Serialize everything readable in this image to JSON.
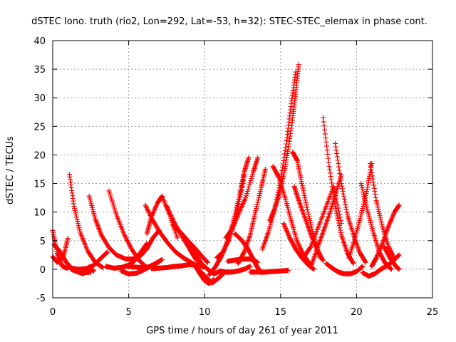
{
  "chart_data": {
    "type": "scatter",
    "title": "dSTEC Iono. truth (rio2, Lon=292, Lat=-53, h=32): STEC-STEC_elemax in phase cont.",
    "xlabel": "GPS time / hours of day 261 of year 2011",
    "ylabel": "dSTEC  / TECUs",
    "xlim": [
      0,
      25
    ],
    "ylim": [
      -5,
      40
    ],
    "xticks": [
      0,
      5,
      10,
      15,
      20,
      25
    ],
    "yticks": [
      -5,
      0,
      5,
      10,
      15,
      20,
      25,
      30,
      35,
      40
    ],
    "grid": true,
    "marker": "+",
    "color": "#ff0000",
    "series": [
      {
        "x": [
          0.0,
          0.3,
          0.6,
          0.9,
          1.1
        ],
        "y": [
          6.8,
          2.8,
          0.6,
          0.2,
          0.4
        ]
      },
      {
        "x": [
          0.0,
          0.3,
          0.7,
          1.0
        ],
        "y": [
          2.2,
          1.2,
          2.2,
          5.4
        ]
      },
      {
        "x": [
          0.1,
          0.5,
          0.9,
          1.3,
          1.7,
          2.1,
          2.5
        ],
        "y": [
          4.3,
          3.0,
          1.2,
          0.0,
          -0.5,
          -0.6,
          -0.5
        ]
      },
      {
        "x": [
          1.1,
          1.4,
          1.8,
          2.3,
          2.8,
          3.3
        ],
        "y": [
          16.6,
          11.0,
          6.5,
          3.2,
          1.2,
          0.3
        ]
      },
      {
        "x": [
          1.2,
          1.6,
          2.0,
          2.4,
          2.7
        ],
        "y": [
          0.0,
          -0.4,
          -0.8,
          0.4,
          -0.3
        ]
      },
      {
        "x": [
          2.4,
          2.8,
          3.2,
          3.7,
          4.2,
          4.8,
          5.3,
          5.8,
          6.2,
          6.6,
          7.0
        ],
        "y": [
          12.8,
          8.8,
          6.0,
          3.8,
          2.5,
          1.8,
          1.8,
          2.4,
          3.6,
          5.5,
          6.8
        ]
      },
      {
        "x": [
          1.2,
          1.7,
          2.2,
          2.7,
          3.2,
          3.6
        ],
        "y": [
          0.2,
          0.0,
          0.1,
          0.7,
          2.0,
          3.0
        ]
      },
      {
        "x": [
          3.5,
          4.0,
          4.5,
          5.0,
          5.4,
          5.8,
          6.2
        ],
        "y": [
          0.5,
          0.2,
          0.3,
          0.7,
          1.5,
          3.0,
          4.5
        ]
      },
      {
        "x": [
          3.7,
          4.2,
          4.7,
          5.2,
          5.7,
          6.2
        ],
        "y": [
          13.7,
          9.5,
          6.1,
          3.5,
          1.5,
          0.3
        ]
      },
      {
        "x": [
          4.5,
          5.0,
          5.5,
          6.0,
          6.5,
          7.0
        ],
        "y": [
          -0.3,
          -0.8,
          -0.7,
          -0.1,
          0.6,
          1.3
        ]
      },
      {
        "x": [
          4.8,
          5.3,
          5.8,
          6.3,
          6.7,
          7.2
        ],
        "y": [
          0.6,
          0.4,
          0.3,
          0.4,
          0.9,
          1.7
        ]
      },
      {
        "x": [
          6.2,
          6.5,
          6.9,
          7.2,
          7.7,
          8.2
        ],
        "y": [
          6.2,
          9.2,
          11.6,
          12.8,
          9.5,
          5.5
        ]
      },
      {
        "x": [
          6.1,
          6.6,
          7.1,
          7.6,
          8.1,
          8.6,
          9.1,
          9.5
        ],
        "y": [
          11.2,
          8.5,
          6.3,
          4.5,
          3.0,
          2.0,
          1.2,
          0.6
        ]
      },
      {
        "x": [
          7.5,
          8.0,
          8.5,
          9.0,
          9.4,
          9.9
        ],
        "y": [
          11.0,
          8.2,
          5.8,
          3.6,
          1.8,
          0.5
        ]
      },
      {
        "x": [
          6.5,
          7.0,
          7.5,
          8.0,
          8.5,
          9.0,
          9.5,
          10.0
        ],
        "y": [
          0.1,
          0.2,
          0.3,
          0.5,
          0.6,
          0.8,
          0.7,
          0.4
        ]
      },
      {
        "x": [
          7.9,
          8.4,
          8.9,
          9.4,
          9.8,
          10.2
        ],
        "y": [
          7.8,
          6.5,
          5.0,
          3.6,
          2.3,
          1.2
        ]
      },
      {
        "x": [
          9.0,
          9.4,
          9.8,
          10.2,
          10.6,
          11.0
        ],
        "y": [
          4.0,
          2.6,
          1.0,
          0.0,
          -0.8,
          -0.4
        ]
      },
      {
        "x": [
          9.4,
          9.7,
          10.0,
          10.3,
          10.6
        ],
        "y": [
          0.5,
          -0.8,
          -2.0,
          -2.5,
          -1.8
        ]
      },
      {
        "x": [
          9.7,
          10.1,
          10.5,
          10.9,
          11.3
        ],
        "y": [
          -0.3,
          -1.4,
          -2.4,
          -1.6,
          -0.6
        ]
      },
      {
        "x": [
          10.3,
          10.7,
          11.1,
          11.5,
          11.9,
          12.3,
          12.6,
          12.9
        ],
        "y": [
          -1.0,
          0.4,
          2.2,
          4.8,
          8.5,
          13.0,
          17.0,
          19.5
        ]
      },
      {
        "x": [
          10.8,
          11.2,
          11.6,
          12.0,
          12.4,
          12.6
        ],
        "y": [
          2.0,
          3.0,
          5.2,
          8.5,
          13.5,
          16.5
        ]
      },
      {
        "x": [
          11.0,
          11.4,
          11.8,
          12.2,
          12.6,
          13.0
        ],
        "y": [
          -0.3,
          -0.5,
          -0.5,
          -0.3,
          0.0,
          0.5
        ]
      },
      {
        "x": [
          11.4,
          11.8,
          12.2,
          12.7,
          13.2,
          13.5
        ],
        "y": [
          5.5,
          7.0,
          9.5,
          12.5,
          17.0,
          19.5
        ]
      },
      {
        "x": [
          12.2,
          12.6,
          13.0,
          13.3,
          13.7,
          14.0
        ],
        "y": [
          1.0,
          3.0,
          6.0,
          9.5,
          14.0,
          17.5
        ]
      },
      {
        "x": [
          12.0,
          12.4,
          12.8,
          13.2,
          13.5,
          13.8
        ],
        "y": [
          6.2,
          5.2,
          3.8,
          1.8,
          0.2,
          -0.6
        ]
      },
      {
        "x": [
          11.5,
          12.0,
          12.5,
          13.0,
          13.5
        ],
        "y": [
          1.4,
          1.6,
          1.8,
          1.8,
          1.2
        ]
      },
      {
        "x": [
          13.0,
          13.5,
          14.0,
          14.5,
          15.0,
          15.5
        ],
        "y": [
          -0.5,
          -0.5,
          -0.5,
          -0.4,
          -0.3,
          -0.2
        ]
      },
      {
        "x": [
          13.8,
          14.2,
          14.6,
          15.0,
          15.4,
          15.7,
          16.0
        ],
        "y": [
          3.5,
          6.5,
          10.5,
          15.5,
          22.5,
          29.0,
          34.5
        ]
      },
      {
        "x": [
          14.3,
          14.6,
          14.9,
          15.2,
          15.5,
          15.8,
          16.0,
          16.2
        ],
        "y": [
          8.5,
          10.5,
          13.0,
          16.5,
          21.0,
          26.5,
          31.0,
          35.8
        ]
      },
      {
        "x": [
          14.5,
          14.9,
          15.3,
          15.7,
          16.1,
          16.5,
          16.9
        ],
        "y": [
          18.0,
          16.0,
          12.5,
          8.5,
          4.8,
          2.5,
          1.0
        ]
      },
      {
        "x": [
          15.2,
          15.6,
          16.0,
          16.4,
          16.8,
          17.2
        ],
        "y": [
          8.0,
          5.5,
          3.5,
          2.0,
          0.8,
          0.0
        ]
      },
      {
        "x": [
          15.8,
          16.1,
          16.4,
          16.8,
          17.2,
          17.6
        ],
        "y": [
          20.5,
          19.0,
          15.0,
          10.0,
          5.5,
          2.0
        ]
      },
      {
        "x": [
          15.9,
          16.2,
          16.6,
          17.0,
          17.4,
          17.8
        ],
        "y": [
          14.5,
          12.0,
          9.0,
          6.0,
          3.5,
          1.5
        ]
      },
      {
        "x": [
          16.5,
          17.0,
          17.5,
          18.0,
          18.5,
          19.0
        ],
        "y": [
          2.0,
          4.0,
          7.5,
          11.0,
          14.5,
          8.0
        ]
      },
      {
        "x": [
          17.0,
          17.4,
          17.8,
          18.2,
          18.6,
          19.0
        ],
        "y": [
          0.5,
          3.5,
          6.5,
          9.5,
          13.0,
          16.5
        ]
      },
      {
        "x": [
          17.8,
          18.2,
          18.6,
          19.0,
          19.4,
          19.8
        ],
        "y": [
          26.5,
          18.0,
          11.0,
          6.0,
          2.8,
          1.0
        ]
      },
      {
        "x": [
          18.6,
          19.0,
          19.4,
          19.8,
          20.2,
          20.6
        ],
        "y": [
          22.0,
          15.0,
          9.5,
          6.0,
          3.0,
          1.2
        ]
      },
      {
        "x": [
          18.0,
          18.4,
          18.8,
          19.2,
          19.6,
          20.0,
          20.4
        ],
        "y": [
          1.0,
          0.2,
          -0.5,
          -0.8,
          -0.8,
          -0.4,
          0.5
        ]
      },
      {
        "x": [
          19.5,
          19.9,
          20.3,
          20.7,
          21.0
        ],
        "y": [
          2.0,
          5.5,
          9.5,
          14.0,
          18.5
        ]
      },
      {
        "x": [
          20.3,
          20.7,
          21.1,
          21.5,
          21.9,
          22.3
        ],
        "y": [
          15.0,
          10.5,
          6.5,
          3.0,
          1.0,
          0.0
        ]
      },
      {
        "x": [
          20.9,
          21.3,
          21.7,
          22.1,
          22.5
        ],
        "y": [
          18.5,
          12.0,
          7.5,
          4.0,
          1.8
        ]
      },
      {
        "x": [
          21.0,
          21.3,
          21.7,
          22.1,
          22.5,
          22.8
        ],
        "y": [
          0.5,
          2.0,
          4.5,
          7.5,
          10.0,
          11.2
        ]
      },
      {
        "x": [
          20.4,
          20.8,
          21.2,
          21.6,
          22.0,
          22.4,
          22.8
        ],
        "y": [
          -0.6,
          -1.2,
          -0.8,
          0.0,
          0.6,
          1.4,
          2.5
        ]
      },
      {
        "x": [
          21.8,
          22.2,
          22.6,
          22.8
        ],
        "y": [
          4.0,
          2.0,
          0.5,
          0.0
        ]
      }
    ]
  }
}
